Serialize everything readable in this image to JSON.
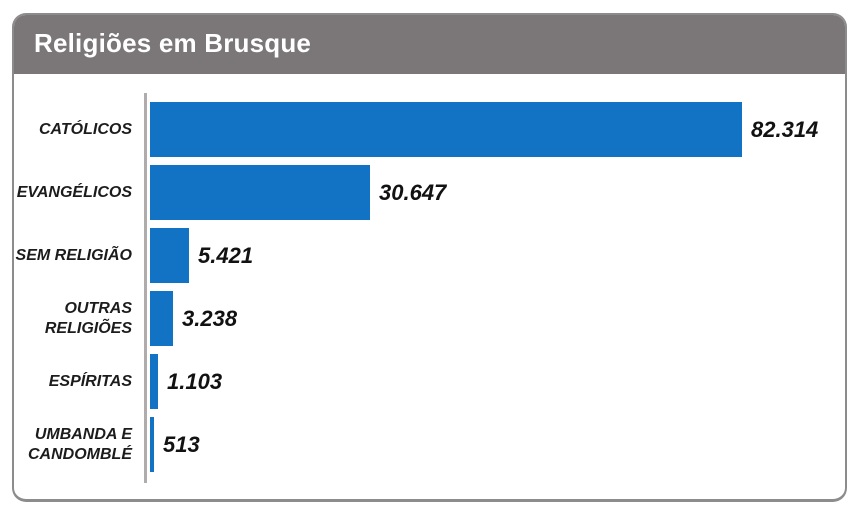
{
  "header": {
    "title": "Religiões em Brusque",
    "background_color": "#7b7778",
    "text_color": "#ffffff"
  },
  "chart_data": {
    "type": "bar",
    "orientation": "horizontal",
    "title": "Religiões em Brusque",
    "categories": [
      "CATÓLICOS",
      "EVANGÉLICOS",
      "SEM RELIGIÃO",
      "OUTRAS RELIGIÕES",
      "ESPÍRITAS",
      "UMBANDA E CANDOMBLÉ"
    ],
    "values": [
      82314,
      30647,
      5421,
      3238,
      1103,
      513
    ],
    "value_labels": [
      "82.314",
      "30.647",
      "5.421",
      "3.238",
      "1.103",
      "513"
    ],
    "bar_color": "#1272c4",
    "axis_line_color": "#b1acac",
    "xlim": [
      0,
      82314
    ],
    "grid": false,
    "legend": false,
    "value_label_position": "end-of-bar"
  }
}
